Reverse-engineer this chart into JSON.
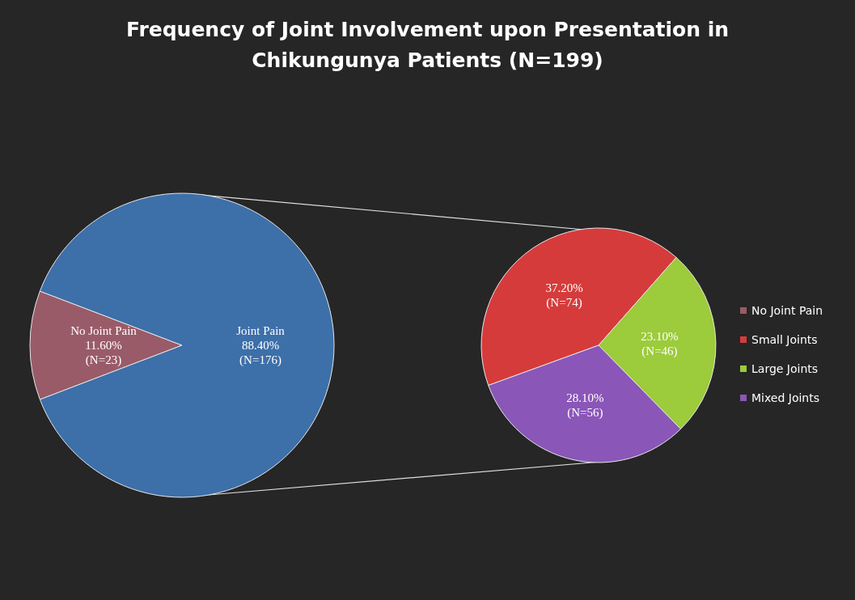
{
  "chart_data": [
    {
      "type": "pie",
      "title": "Frequency of Joint Involvement upon Presentation in Chikungunya Patients (N=199)",
      "categories": [
        "No Joint Pain",
        "Joint Pain"
      ],
      "values": [
        11.6,
        88.4
      ],
      "colors": [
        "#9a5b68",
        "#3d6fa9"
      ],
      "value_labels": [
        "11.60%\n(N=23)",
        "88.40%\n(N=176)"
      ]
    },
    {
      "type": "pie",
      "categories": [
        "Small Joints",
        "Large Joints",
        "Mixed Joints"
      ],
      "values": [
        37.2,
        23.1,
        28.1
      ],
      "colors": [
        "#d63b3b",
        "#9ccb3b",
        "#8a56b8"
      ],
      "value_labels": [
        "37.20%\n(N=74)",
        "23.10%\n(N=46)",
        "28.10%\n(N=56)"
      ],
      "legend": "right"
    }
  ]
}
